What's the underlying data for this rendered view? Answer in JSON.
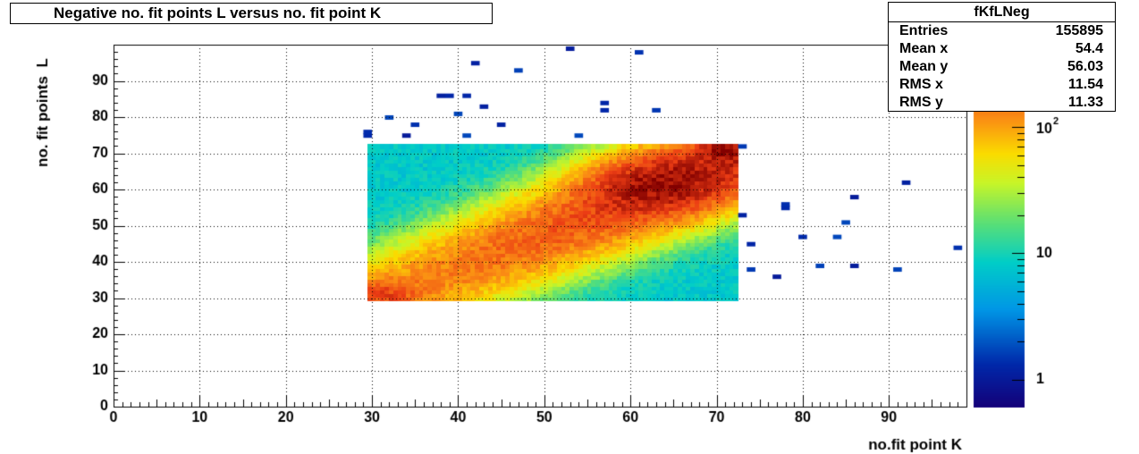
{
  "chart_data": {
    "type": "heatmap",
    "title": "Negative no. fit points L versus no. fit point K",
    "xlabel": "no.fit point K",
    "ylabel": "no. fit points  L",
    "xlim": [
      0,
      99
    ],
    "ylim": [
      0,
      100
    ],
    "x_ticks": [
      "0",
      "10",
      "20",
      "30",
      "40",
      "50",
      "60",
      "70",
      "80",
      "90"
    ],
    "y_ticks": [
      "0",
      "10",
      "20",
      "30",
      "40",
      "50",
      "60",
      "70",
      "80",
      "90"
    ],
    "grid": true,
    "colorbar": {
      "scale": "log",
      "min": 0.6,
      "max": 450,
      "tick_labels": [
        "1",
        "10",
        "10²"
      ]
    },
    "stats": {
      "name": "fKfLNeg",
      "entries": [
        "Entries",
        "155895"
      ],
      "mean_x": [
        "Mean x",
        "54.4"
      ],
      "mean_y": [
        "Mean y",
        "56.03"
      ],
      "rms_x": [
        "RMS x",
        "11.54"
      ],
      "rms_y": [
        "RMS y",
        "11.33"
      ]
    },
    "dense_region": {
      "x": [
        29.5,
        72.5
      ],
      "y": [
        29.5,
        72.5
      ],
      "peak": [
        63,
        62
      ],
      "peak_value": 400
    },
    "sparse_points": [
      [
        29.5,
        75
      ],
      [
        29.5,
        76
      ],
      [
        32,
        80
      ],
      [
        34,
        75
      ],
      [
        35,
        78
      ],
      [
        38,
        86
      ],
      [
        39,
        86
      ],
      [
        40,
        81
      ],
      [
        41,
        86
      ],
      [
        41,
        75
      ],
      [
        42,
        95
      ],
      [
        43,
        83
      ],
      [
        45,
        78
      ],
      [
        47,
        93
      ],
      [
        53,
        99
      ],
      [
        54,
        75
      ],
      [
        57,
        84
      ],
      [
        57,
        82
      ],
      [
        61,
        98
      ],
      [
        63,
        82
      ],
      [
        73,
        72
      ],
      [
        73,
        53
      ],
      [
        74,
        45
      ],
      [
        74,
        38
      ],
      [
        77,
        36
      ],
      [
        78,
        55
      ],
      [
        78,
        56
      ],
      [
        80,
        47
      ],
      [
        82,
        39
      ],
      [
        84,
        47
      ],
      [
        85,
        51
      ],
      [
        86,
        58
      ],
      [
        86,
        39
      ],
      [
        91,
        38
      ],
      [
        92,
        62
      ],
      [
        98,
        44
      ]
    ]
  }
}
